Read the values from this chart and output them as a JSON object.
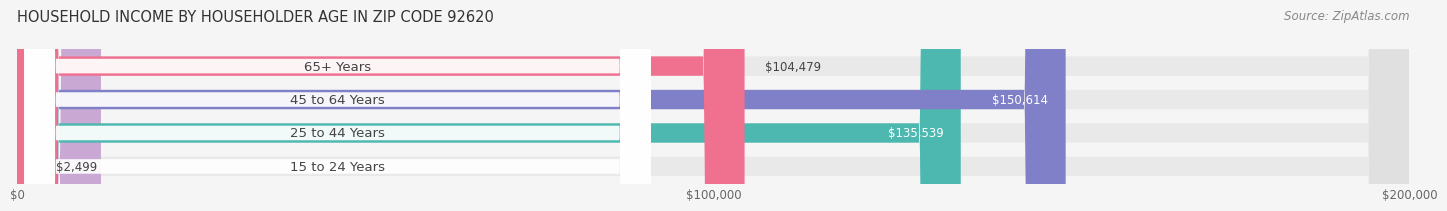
{
  "title": "HOUSEHOLD INCOME BY HOUSEHOLDER AGE IN ZIP CODE 92620",
  "source": "Source: ZipAtlas.com",
  "categories": [
    "15 to 24 Years",
    "25 to 44 Years",
    "45 to 64 Years",
    "65+ Years"
  ],
  "values": [
    2499,
    135539,
    150614,
    104479
  ],
  "labels": [
    "$2,499",
    "$135,539",
    "$150,614",
    "$104,479"
  ],
  "bar_colors": [
    "#c9a8d4",
    "#4db8b0",
    "#8080c8",
    "#f07090"
  ],
  "label_inside": [
    false,
    true,
    true,
    false
  ],
  "xlim": [
    0,
    200000
  ],
  "xticks": [
    0,
    100000,
    200000
  ],
  "xtick_labels": [
    "$0",
    "$100,000",
    "$200,000"
  ],
  "title_fontsize": 10.5,
  "source_fontsize": 8.5,
  "label_fontsize": 8.5,
  "bar_height": 0.58,
  "background_color": "#f5f5f5",
  "grid_color": "#cccccc",
  "text_dark": "#444444",
  "text_light": "#ffffff",
  "badge_color": "#ffffff",
  "bg_bar_color": "#e0e0e0"
}
